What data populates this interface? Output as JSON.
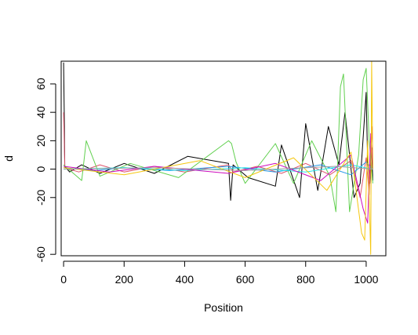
{
  "chart_data": {
    "type": "line",
    "title": "",
    "xlabel": "Position",
    "ylabel": "d",
    "xlim": [
      -8,
      1065
    ],
    "ylim": [
      -61,
      76
    ],
    "x_ticks": [
      0,
      200,
      400,
      600,
      800,
      1000
    ],
    "x_tick_labels": [
      "0",
      "200",
      "400",
      "600",
      "800",
      "1000"
    ],
    "y_ticks": [
      -60,
      -20,
      0,
      20,
      40,
      60
    ],
    "y_tick_labels": [
      "-60",
      "-20",
      "0",
      "20",
      "40",
      "60"
    ],
    "grid": false,
    "legend": "none",
    "series": [
      {
        "color": "#000000",
        "points": [
          [
            0,
            75
          ],
          [
            2,
            40
          ],
          [
            4,
            2
          ],
          [
            20,
            -2
          ],
          [
            60,
            3
          ],
          [
            120,
            -3
          ],
          [
            200,
            4
          ],
          [
            300,
            -3
          ],
          [
            410,
            9
          ],
          [
            545,
            4
          ],
          [
            552,
            -22
          ],
          [
            560,
            3
          ],
          [
            610,
            -6
          ],
          [
            700,
            -12
          ],
          [
            720,
            17
          ],
          [
            780,
            -20
          ],
          [
            800,
            32
          ],
          [
            840,
            -15
          ],
          [
            875,
            30
          ],
          [
            910,
            3
          ],
          [
            930,
            40
          ],
          [
            960,
            -20
          ],
          [
            980,
            -10
          ],
          [
            1000,
            54
          ],
          [
            1005,
            5
          ],
          [
            1012,
            -10
          ],
          [
            1018,
            15
          ],
          [
            1022,
            -8
          ]
        ]
      },
      {
        "color": "#DF536B",
        "points": [
          [
            0,
            40
          ],
          [
            2,
            20
          ],
          [
            4,
            1
          ],
          [
            50,
            -2
          ],
          [
            120,
            3
          ],
          [
            200,
            -2
          ],
          [
            300,
            2
          ],
          [
            400,
            -2
          ],
          [
            545,
            3
          ],
          [
            560,
            -2
          ],
          [
            640,
            2
          ],
          [
            720,
            -3
          ],
          [
            800,
            4
          ],
          [
            880,
            -4
          ],
          [
            950,
            6
          ],
          [
            980,
            -20
          ],
          [
            1000,
            8
          ],
          [
            1010,
            -18
          ],
          [
            1015,
            10
          ],
          [
            1020,
            30
          ],
          [
            1022,
            0
          ]
        ]
      },
      {
        "color": "#61D04F",
        "points": [
          [
            0,
            3
          ],
          [
            60,
            -8
          ],
          [
            75,
            20
          ],
          [
            120,
            -5
          ],
          [
            220,
            4
          ],
          [
            380,
            -6
          ],
          [
            545,
            20
          ],
          [
            555,
            18
          ],
          [
            570,
            5
          ],
          [
            600,
            -10
          ],
          [
            700,
            18
          ],
          [
            760,
            -10
          ],
          [
            820,
            20
          ],
          [
            880,
            -5
          ],
          [
            900,
            -30
          ],
          [
            915,
            58
          ],
          [
            925,
            67
          ],
          [
            945,
            -30
          ],
          [
            975,
            10
          ],
          [
            990,
            63
          ],
          [
            1000,
            71
          ],
          [
            1010,
            20
          ],
          [
            1022,
            -10
          ]
        ]
      },
      {
        "color": "#2297E6",
        "points": [
          [
            0,
            1
          ],
          [
            100,
            -1
          ],
          [
            200,
            1
          ],
          [
            350,
            -1
          ],
          [
            545,
            2
          ],
          [
            700,
            -2
          ],
          [
            850,
            3
          ],
          [
            950,
            -4
          ],
          [
            1000,
            5
          ],
          [
            1022,
            0
          ]
        ]
      },
      {
        "color": "#28E2E5",
        "points": [
          [
            0,
            0
          ],
          [
            200,
            1
          ],
          [
            400,
            -1
          ],
          [
            600,
            1
          ],
          [
            800,
            -2
          ],
          [
            950,
            3
          ],
          [
            1022,
            0
          ]
        ]
      },
      {
        "color": "#CD0BBC",
        "points": [
          [
            0,
            2
          ],
          [
            150,
            -2
          ],
          [
            300,
            2
          ],
          [
            545,
            -3
          ],
          [
            700,
            4
          ],
          [
            850,
            -8
          ],
          [
            950,
            10
          ],
          [
            990,
            -28
          ],
          [
            1005,
            -38
          ],
          [
            1015,
            25
          ],
          [
            1022,
            0
          ]
        ]
      },
      {
        "color": "#F5C710",
        "points": [
          [
            0,
            1
          ],
          [
            200,
            -4
          ],
          [
            450,
            6
          ],
          [
            600,
            -6
          ],
          [
            760,
            8
          ],
          [
            870,
            -15
          ],
          [
            950,
            12
          ],
          [
            985,
            -45
          ],
          [
            995,
            -50
          ],
          [
            1005,
            20
          ],
          [
            1015,
            -60
          ],
          [
            1018,
            76
          ],
          [
            1022,
            0
          ]
        ]
      },
      {
        "color": "#9E9E9E",
        "points": [
          [
            0,
            0
          ],
          [
            300,
            1
          ],
          [
            600,
            -1
          ],
          [
            900,
            2
          ],
          [
            1022,
            0
          ]
        ]
      }
    ]
  }
}
